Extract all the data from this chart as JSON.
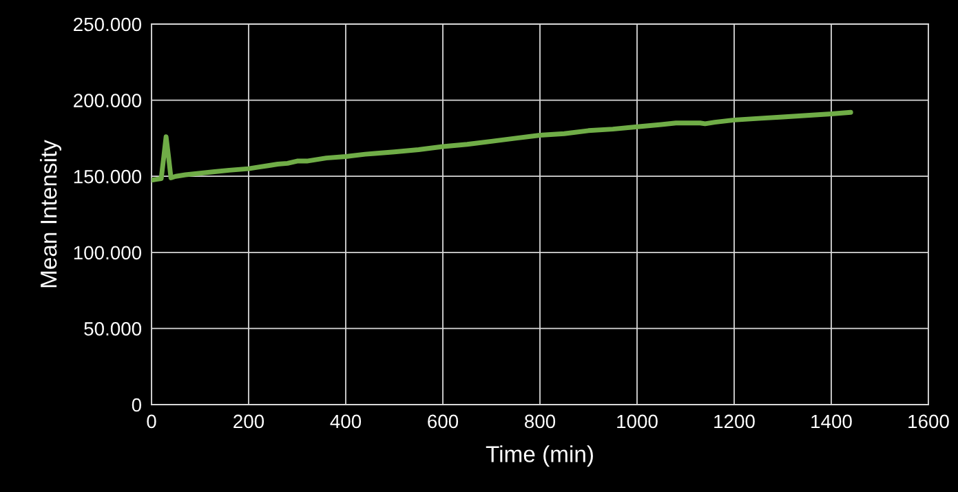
{
  "chart_data": {
    "type": "line",
    "xlabel": "Time (min)",
    "ylabel": "Mean Intensity",
    "series": [
      {
        "color": "#70ad47",
        "x": [
          0,
          10,
          20,
          25,
          30,
          35,
          40,
          50,
          70,
          100,
          130,
          160,
          200,
          220,
          240,
          260,
          280,
          300,
          320,
          340,
          360,
          400,
          440,
          460,
          500,
          550,
          600,
          650,
          700,
          750,
          800,
          850,
          900,
          950,
          1000,
          1050,
          1080,
          1100,
          1130,
          1140,
          1160,
          1200,
          1250,
          1300,
          1350,
          1400,
          1440
        ],
        "values": [
          147500,
          148000,
          148500,
          162000,
          176000,
          163000,
          149000,
          150000,
          151000,
          152000,
          153000,
          154000,
          155000,
          156000,
          157000,
          158000,
          158500,
          160000,
          160000,
          161000,
          162000,
          163000,
          164500,
          165000,
          166000,
          167500,
          169500,
          171000,
          173000,
          175000,
          177000,
          178000,
          180000,
          181000,
          182500,
          184000,
          185000,
          185000,
          185000,
          184500,
          185500,
          187000,
          188000,
          189000,
          190000,
          191000,
          192000
        ]
      }
    ],
    "xlim": [
      0,
      1600
    ],
    "xticks": [
      0,
      200,
      400,
      600,
      800,
      1000,
      1200,
      1400,
      1600
    ],
    "ylim": [
      0,
      250000
    ],
    "yticks": [
      {
        "value": 0,
        "label": "0"
      },
      {
        "value": 50000,
        "label": "50.000"
      },
      {
        "value": 100000,
        "label": "100.000"
      },
      {
        "value": 150000,
        "label": "150.000"
      },
      {
        "value": 200000,
        "label": "200.000"
      },
      {
        "value": 250000,
        "label": "250.000"
      }
    ],
    "grid": true,
    "marker": "none",
    "line_style": "solid"
  }
}
